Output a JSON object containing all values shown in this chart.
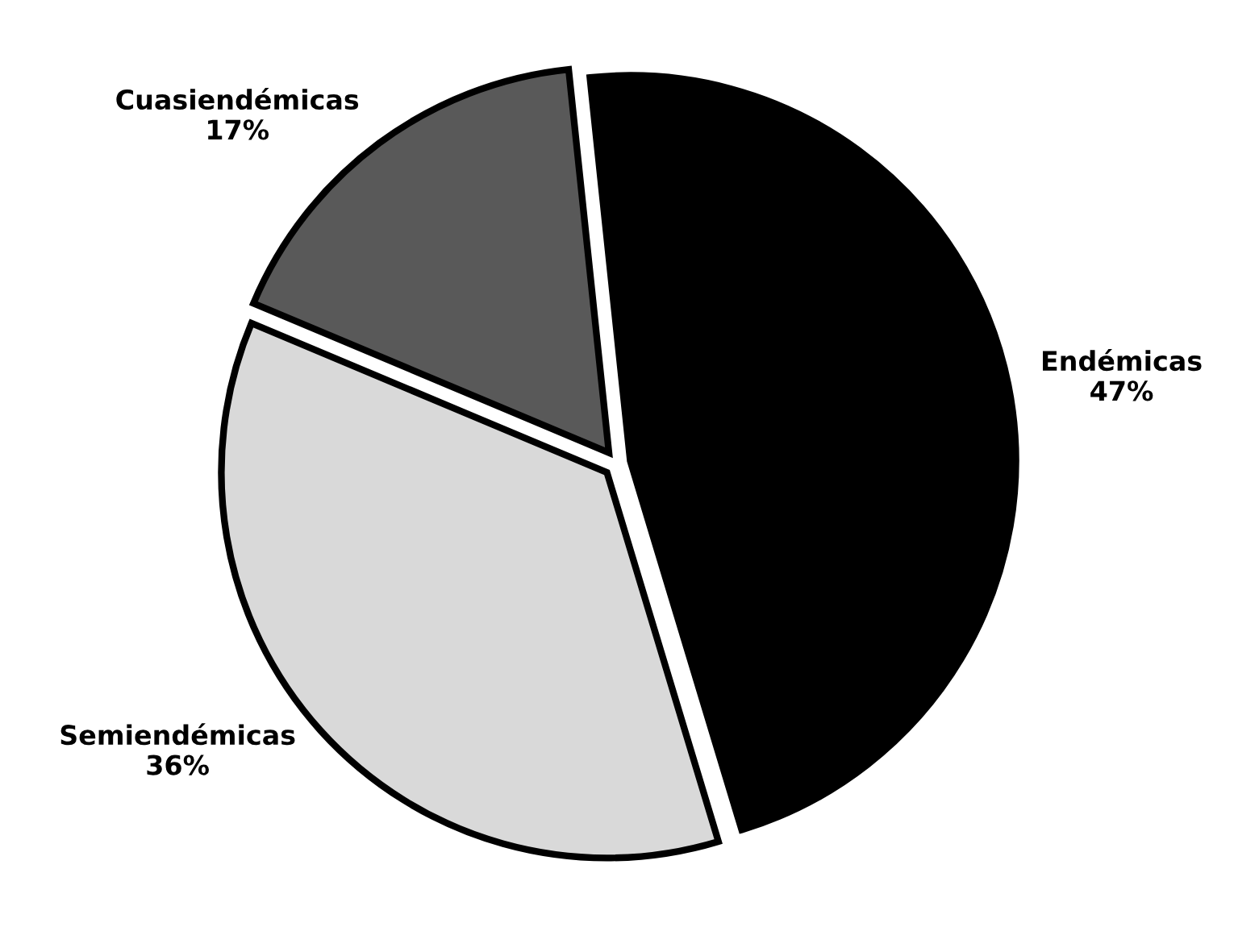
{
  "chart_data": {
    "type": "pie",
    "categories": [
      "Endémicas",
      "Semiendémicas",
      "Cuasiendémicas"
    ],
    "values": [
      47,
      36,
      17
    ],
    "value_labels": [
      "47%",
      "36%",
      "17%"
    ],
    "colors": [
      "#000000",
      "#d9d9d9",
      "#595959"
    ],
    "legend": false
  }
}
